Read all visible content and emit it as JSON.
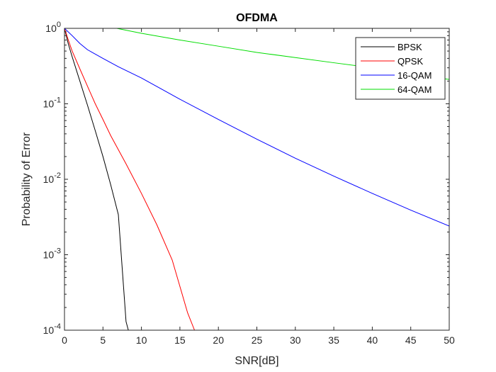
{
  "chart_data": {
    "type": "line",
    "title": "OFDMA",
    "xlabel": "SNR[dB]",
    "ylabel": "Probability of Error",
    "xlim": [
      0,
      50
    ],
    "ylim": [
      0.0001,
      1
    ],
    "yscale": "log",
    "grid": false,
    "legend_position": "top-right",
    "x_ticks": [
      0,
      5,
      10,
      15,
      20,
      25,
      30,
      35,
      40,
      45,
      50
    ],
    "x_tick_labels": [
      "0",
      "5",
      "10",
      "15",
      "20",
      "25",
      "30",
      "35",
      "40",
      "45",
      "50"
    ],
    "y_tick_values": [
      0.0001,
      0.001,
      0.01,
      0.1,
      1
    ],
    "y_tick_labels": [
      {
        "base": "10",
        "exp": "-4"
      },
      {
        "base": "10",
        "exp": "-3"
      },
      {
        "base": "10",
        "exp": "-2"
      },
      {
        "base": "10",
        "exp": "-1"
      },
      {
        "base": "10",
        "exp": "0"
      }
    ],
    "series": [
      {
        "name": "BPSK",
        "color": "#000000",
        "x": [
          0,
          0.5,
          1,
          2,
          3,
          4,
          5,
          6,
          7,
          8,
          8.3
        ],
        "y": [
          1.0,
          0.62,
          0.42,
          0.2,
          0.095,
          0.044,
          0.02,
          0.0085,
          0.0034,
          0.00013,
          0.0001
        ]
      },
      {
        "name": "QPSK",
        "color": "#ff0000",
        "x": [
          0,
          0.5,
          1,
          2,
          3,
          4,
          5,
          6,
          8,
          10,
          12,
          14,
          16,
          16.9
        ],
        "y": [
          1.0,
          0.7,
          0.5,
          0.29,
          0.17,
          0.1,
          0.062,
          0.038,
          0.016,
          0.0065,
          0.0025,
          0.00085,
          0.00017,
          0.0001
        ]
      },
      {
        "name": "16-QAM",
        "color": "#0000ff",
        "x": [
          0,
          1,
          2,
          3,
          5,
          7,
          10,
          15,
          20,
          25,
          30,
          35,
          40,
          45,
          50
        ],
        "y": [
          1.0,
          0.8,
          0.63,
          0.52,
          0.4,
          0.31,
          0.22,
          0.115,
          0.062,
          0.034,
          0.019,
          0.011,
          0.0065,
          0.0039,
          0.0024
        ]
      },
      {
        "name": "64-QAM",
        "color": "#00dd00",
        "x": [
          6.8,
          10,
          15,
          20,
          25,
          30,
          35,
          40,
          45,
          50
        ],
        "y": [
          1.0,
          0.86,
          0.7,
          0.58,
          0.48,
          0.41,
          0.35,
          0.3,
          0.25,
          0.21
        ]
      }
    ]
  }
}
